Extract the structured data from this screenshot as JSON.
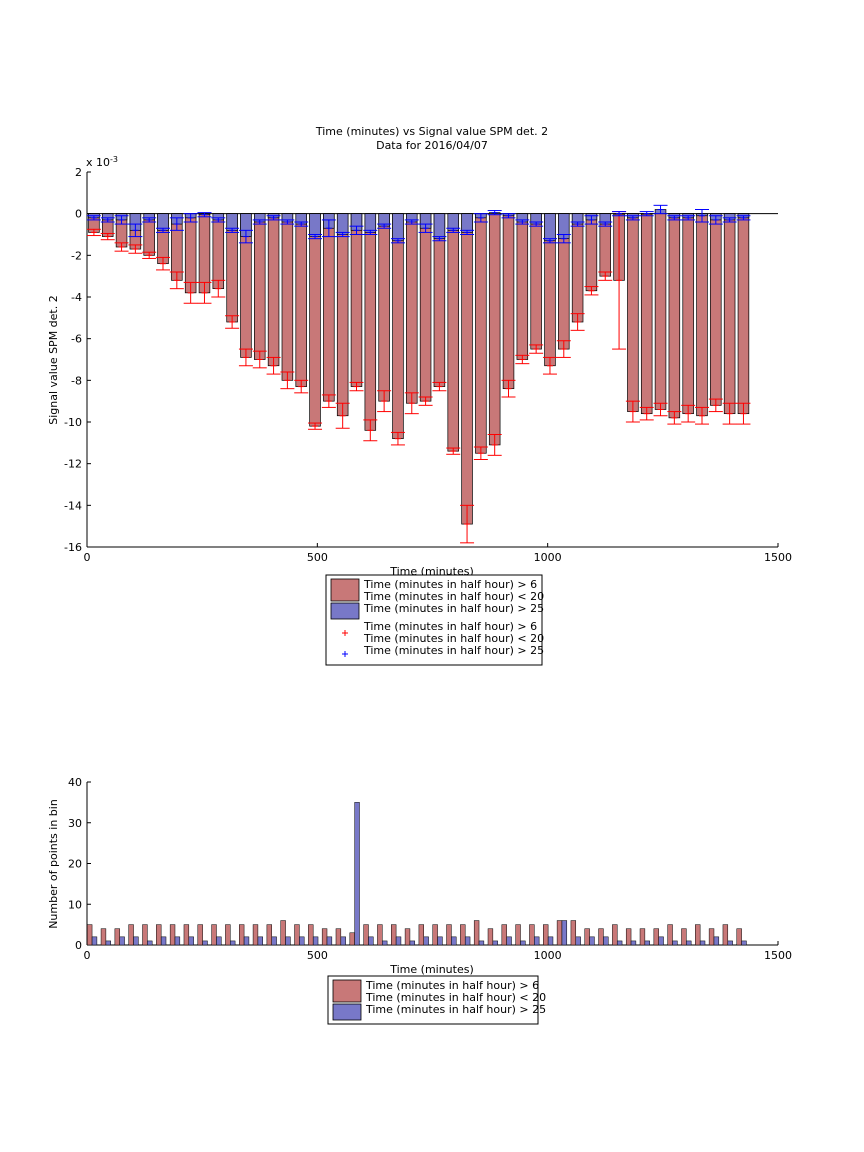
{
  "colors": {
    "red_bar": "#c87878",
    "blue_bar": "#7878c8",
    "red_marker": "#ff0000",
    "blue_marker": "#0000ff"
  },
  "chart_data": [
    {
      "type": "bar",
      "title": "Time (minutes) vs Signal value SPM det. 2",
      "subtitle": "Data for 2016/04/07",
      "xlabel": "Time (minutes)",
      "ylabel": "Signal value SPM det. 2",
      "exponent_label": "x 10",
      "exponent_power": "-3",
      "xlim": [
        0,
        1500
      ],
      "ylim": [
        -16,
        2
      ],
      "xticks": [
        0,
        500,
        1000,
        1500
      ],
      "yticks": [
        2,
        0,
        -2,
        -4,
        -6,
        -8,
        -10,
        -12,
        -14,
        -16
      ],
      "grid": false,
      "legend_position": "bottom-outside",
      "legend": [
        {
          "line1": "Time (minutes in half hour) > 6",
          "line2": "Time (minutes in half hour) < 20",
          "kind": "patch",
          "color": "red"
        },
        {
          "line1": "Time (minutes in half hour) > 25",
          "line2": "",
          "kind": "patch",
          "color": "blue"
        },
        {
          "line1": "Time (minutes in half hour) > 6",
          "line2": "Time (minutes in half hour) < 20",
          "kind": "marker",
          "color": "red"
        },
        {
          "line1": "Time (minutes in half hour) > 25",
          "line2": "",
          "kind": "marker",
          "color": "blue"
        }
      ],
      "x": [
        15,
        45,
        75,
        105,
        135,
        165,
        195,
        225,
        255,
        285,
        315,
        345,
        375,
        405,
        435,
        465,
        495,
        525,
        555,
        585,
        615,
        645,
        675,
        705,
        735,
        765,
        795,
        825,
        855,
        885,
        915,
        945,
        975,
        1005,
        1035,
        1065,
        1095,
        1125,
        1155,
        1185,
        1215,
        1245,
        1275,
        1305,
        1335,
        1365,
        1395,
        1425
      ],
      "series": [
        {
          "name": "Time (minutes in half hour) > 6 / Time (minutes in half hour) < 20",
          "values": [
            -0.9,
            -1.1,
            -1.6,
            -1.7,
            -2.0,
            -2.4,
            -3.2,
            -3.8,
            -3.8,
            -3.6,
            -5.2,
            -6.9,
            -7.0,
            -7.3,
            -8.0,
            -8.3,
            -10.2,
            -9.0,
            -9.7,
            -8.3,
            -10.4,
            -9.0,
            -10.8,
            -9.1,
            -9.0,
            -8.3,
            -11.4,
            -14.9,
            -11.5,
            -11.1,
            -8.4,
            -7.0,
            -6.5,
            -7.3,
            -6.5,
            -5.2,
            -3.7,
            -3.0,
            -3.2,
            -9.5,
            -9.6,
            -9.4,
            -9.8,
            -9.6,
            -9.7,
            -9.2,
            -9.6,
            -9.6
          ],
          "errors": [
            0.15,
            0.15,
            0.2,
            0.2,
            0.15,
            0.3,
            0.4,
            0.5,
            0.5,
            0.4,
            0.3,
            0.4,
            0.4,
            0.4,
            0.4,
            0.3,
            0.15,
            0.3,
            0.6,
            0.2,
            0.5,
            0.5,
            0.3,
            0.5,
            0.2,
            0.2,
            0.15,
            0.9,
            0.3,
            0.5,
            0.4,
            0.2,
            0.2,
            0.4,
            0.4,
            0.4,
            0.2,
            0.2,
            3.3,
            0.5,
            0.3,
            0.3,
            0.3,
            0.4,
            0.4,
            0.3,
            0.5,
            0.5
          ]
        },
        {
          "name": "Time (minutes in half hour) > 25",
          "values": [
            -0.2,
            -0.3,
            -0.3,
            -0.8,
            -0.3,
            -0.8,
            -0.5,
            -0.2,
            -0.05,
            -0.3,
            -0.8,
            -1.1,
            -0.4,
            -0.2,
            -0.4,
            -0.5,
            -1.1,
            -0.7,
            -1.0,
            -0.8,
            -0.9,
            -0.6,
            -1.3,
            -0.4,
            -0.7,
            -1.2,
            -0.8,
            -0.9,
            -0.2,
            0.05,
            -0.1,
            -0.4,
            -0.5,
            -1.3,
            -1.2,
            -0.5,
            -0.3,
            -0.5,
            0.0,
            -0.2,
            0.0,
            0.2,
            -0.2,
            -0.2,
            -0.1,
            -0.3,
            -0.3,
            -0.2
          ],
          "errors": [
            0.1,
            0.1,
            0.2,
            0.3,
            0.1,
            0.1,
            0.3,
            0.2,
            0.1,
            0.1,
            0.1,
            0.3,
            0.1,
            0.1,
            0.1,
            0.1,
            0.1,
            0.4,
            0.1,
            0.2,
            0.1,
            0.1,
            0.1,
            0.1,
            0.2,
            0.1,
            0.1,
            0.1,
            0.2,
            0.1,
            0.1,
            0.1,
            0.1,
            0.1,
            0.2,
            0.1,
            0.2,
            0.1,
            0.1,
            0.1,
            0.1,
            0.2,
            0.1,
            0.1,
            0.3,
            0.2,
            0.1,
            0.1
          ]
        }
      ]
    },
    {
      "type": "bar",
      "title": "",
      "xlabel": "Time (minutes)",
      "ylabel": "Number of points in bin",
      "xlim": [
        0,
        1500
      ],
      "ylim": [
        0,
        40
      ],
      "xticks": [
        0,
        500,
        1000,
        1500
      ],
      "yticks": [
        40,
        30,
        20,
        10,
        0
      ],
      "grid": false,
      "legend_position": "bottom-outside",
      "legend": [
        {
          "line1": "Time (minutes in half hour) > 6",
          "line2": "Time (minutes in half hour) < 20",
          "kind": "patch",
          "color": "red"
        },
        {
          "line1": "Time (minutes in half hour) > 25",
          "line2": "",
          "kind": "patch",
          "color": "blue"
        }
      ],
      "x": [
        15,
        45,
        75,
        105,
        135,
        165,
        195,
        225,
        255,
        285,
        315,
        345,
        375,
        405,
        435,
        465,
        495,
        525,
        555,
        585,
        615,
        645,
        675,
        705,
        735,
        765,
        795,
        825,
        855,
        885,
        915,
        945,
        975,
        1005,
        1035,
        1065,
        1095,
        1125,
        1155,
        1185,
        1215,
        1245,
        1275,
        1305,
        1335,
        1365,
        1395,
        1425
      ],
      "series": [
        {
          "name": "Time (minutes in half hour) > 6 / Time (minutes in half hour) < 20",
          "values": [
            5,
            4,
            4,
            5,
            5,
            5,
            5,
            5,
            5,
            5,
            5,
            5,
            5,
            5,
            6,
            5,
            5,
            4,
            4,
            3,
            5,
            5,
            5,
            4,
            5,
            5,
            5,
            5,
            6,
            4,
            5,
            5,
            5,
            5,
            6,
            6,
            4,
            4,
            5,
            4,
            4,
            4,
            5,
            4,
            5,
            4,
            5,
            4
          ]
        },
        {
          "name": "Time (minutes in half hour) > 25",
          "values": [
            2,
            1,
            2,
            2,
            1,
            2,
            2,
            2,
            1,
            2,
            1,
            2,
            2,
            2,
            2,
            2,
            2,
            2,
            2,
            35,
            2,
            1,
            2,
            1,
            2,
            2,
            2,
            2,
            1,
            1,
            2,
            1,
            2,
            2,
            6,
            2,
            2,
            2,
            1,
            1,
            1,
            2,
            1,
            1,
            1,
            2,
            1,
            1
          ]
        }
      ]
    }
  ]
}
